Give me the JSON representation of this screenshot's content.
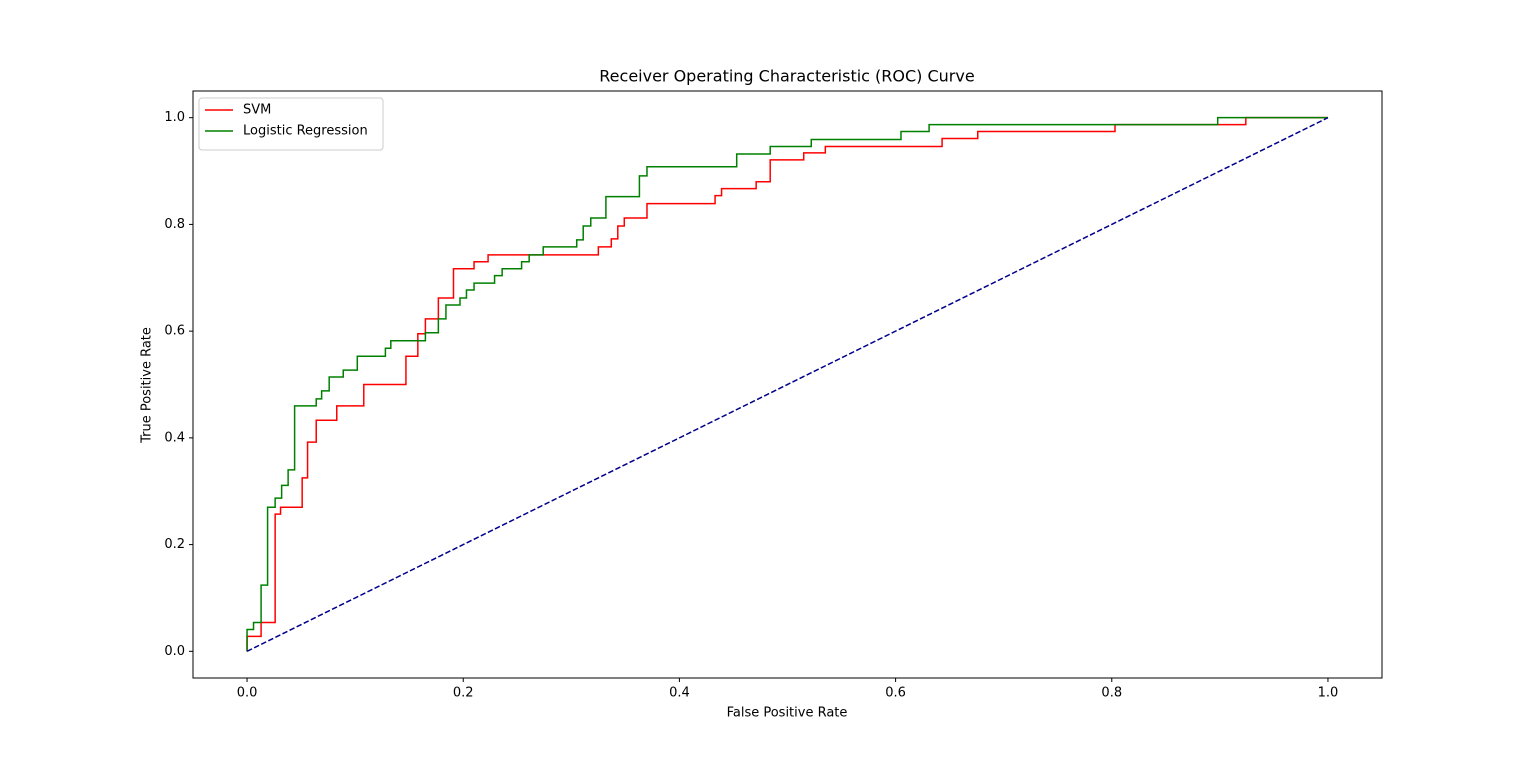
{
  "chart_data": {
    "type": "line",
    "title": "Receiver Operating Characteristic (ROC) Curve",
    "xlabel": "False Positive Rate",
    "ylabel": "True Positive Rate",
    "xlim": [
      -0.05,
      1.05
    ],
    "ylim": [
      -0.05,
      1.05
    ],
    "xticks": [
      {
        "value": 0,
        "label": "0.0"
      },
      0.2,
      0.4,
      0.6,
      0.8,
      {
        "value": 1,
        "label": "1.0"
      }
    ],
    "yticks": [
      {
        "value": 0,
        "label": "0.0"
      },
      0.2,
      0.4,
      0.6,
      0.8,
      {
        "value": 1,
        "label": "1.0"
      }
    ],
    "grid": false,
    "legend": "upper left",
    "series": [
      {
        "name": "SVM",
        "color": "#ff0000",
        "linestyle": "solid",
        "x": [
          0,
          0,
          0.013,
          0.013,
          0.026,
          0.026,
          0.031,
          0.031,
          0.051,
          0.051,
          0.056,
          0.056,
          0.064,
          0.064,
          0.083,
          0.083,
          0.108,
          0.108,
          0.147,
          0.147,
          0.158,
          0.158,
          0.165,
          0.165,
          0.177,
          0.177,
          0.191,
          0.191,
          0.21,
          0.21,
          0.223,
          0.223,
          0.325,
          0.325,
          0.337,
          0.337,
          0.343,
          0.343,
          0.349,
          0.349,
          0.37,
          0.37,
          0.433,
          0.433,
          0.439,
          0.439,
          0.471,
          0.471,
          0.484,
          0.484,
          0.515,
          0.515,
          0.535,
          0.535,
          0.643,
          0.643,
          0.676,
          0.676,
          0.803,
          0.803,
          0.924,
          0.924,
          1
        ],
        "values": [
          0,
          0.028,
          0.028,
          0.054,
          0.054,
          0.257,
          0.257,
          0.27,
          0.27,
          0.325,
          0.325,
          0.392,
          0.392,
          0.433,
          0.433,
          0.46,
          0.46,
          0.5,
          0.5,
          0.553,
          0.553,
          0.595,
          0.595,
          0.623,
          0.623,
          0.662,
          0.662,
          0.717,
          0.717,
          0.73,
          0.73,
          0.743,
          0.743,
          0.758,
          0.758,
          0.773,
          0.773,
          0.797,
          0.797,
          0.812,
          0.812,
          0.839,
          0.839,
          0.854,
          0.854,
          0.867,
          0.867,
          0.88,
          0.88,
          0.921,
          0.921,
          0.934,
          0.934,
          0.946,
          0.946,
          0.961,
          0.961,
          0.974,
          0.974,
          0.987,
          0.987,
          1,
          1
        ]
      },
      {
        "name": "Logistic Regression",
        "color": "#008000",
        "linestyle": "solid",
        "x": [
          0,
          0,
          0.006,
          0.006,
          0.013,
          0.013,
          0.019,
          0.019,
          0.026,
          0.026,
          0.032,
          0.032,
          0.038,
          0.038,
          0.044,
          0.044,
          0.064,
          0.064,
          0.069,
          0.069,
          0.076,
          0.076,
          0.089,
          0.089,
          0.102,
          0.102,
          0.128,
          0.128,
          0.133,
          0.133,
          0.165,
          0.165,
          0.177,
          0.177,
          0.184,
          0.184,
          0.197,
          0.197,
          0.203,
          0.203,
          0.21,
          0.21,
          0.229,
          0.229,
          0.236,
          0.236,
          0.254,
          0.254,
          0.261,
          0.261,
          0.274,
          0.274,
          0.305,
          0.305,
          0.311,
          0.311,
          0.318,
          0.318,
          0.332,
          0.332,
          0.363,
          0.363,
          0.37,
          0.37,
          0.453,
          0.453,
          0.484,
          0.484,
          0.522,
          0.522,
          0.605,
          0.605,
          0.631,
          0.631,
          0.898,
          0.898,
          1
        ],
        "values": [
          0,
          0.041,
          0.041,
          0.054,
          0.054,
          0.124,
          0.124,
          0.27,
          0.27,
          0.287,
          0.287,
          0.311,
          0.311,
          0.34,
          0.34,
          0.46,
          0.46,
          0.473,
          0.473,
          0.488,
          0.488,
          0.514,
          0.514,
          0.527,
          0.527,
          0.553,
          0.553,
          0.568,
          0.568,
          0.582,
          0.582,
          0.597,
          0.597,
          0.623,
          0.623,
          0.649,
          0.649,
          0.662,
          0.662,
          0.677,
          0.677,
          0.69,
          0.69,
          0.704,
          0.704,
          0.717,
          0.717,
          0.73,
          0.73,
          0.743,
          0.743,
          0.758,
          0.758,
          0.771,
          0.771,
          0.797,
          0.797,
          0.812,
          0.812,
          0.852,
          0.852,
          0.891,
          0.891,
          0.908,
          0.908,
          0.932,
          0.932,
          0.946,
          0.946,
          0.959,
          0.959,
          0.974,
          0.974,
          0.987,
          0.987,
          1,
          1
        ]
      },
      {
        "color": "#00008b",
        "linestyle": "dashed",
        "x": [
          0,
          1
        ],
        "values": [
          0,
          1
        ]
      }
    ]
  }
}
